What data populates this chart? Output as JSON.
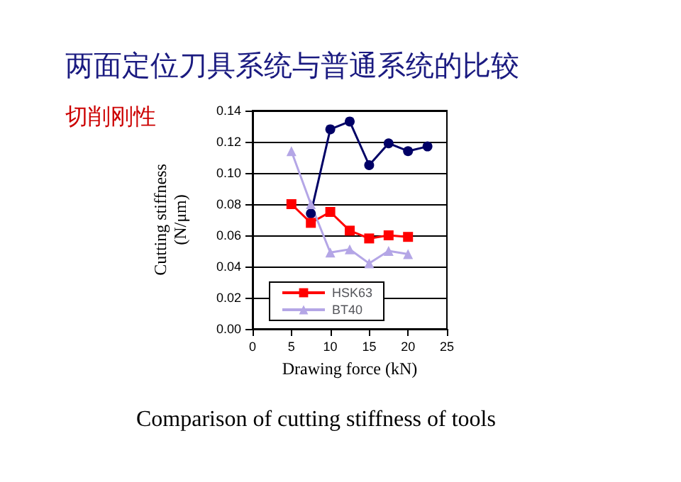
{
  "chart_data": {
    "type": "line",
    "title": "两面定位刀具系统与普通系统的比较",
    "subtitle": "切削刚性",
    "xlabel": "Drawing force (kN)",
    "ylabel": "Cutting stiffness\n(N/μm)",
    "annotations": [
      "Comparison of cutting stiffness of tools"
    ],
    "series": [
      {
        "color": "#000066",
        "marker": "circle",
        "x": [
          7.5,
          10,
          12.5,
          15,
          17.5,
          20,
          22.5
        ],
        "values": [
          0.074,
          0.128,
          0.133,
          0.105,
          0.119,
          0.114,
          0.117
        ]
      },
      {
        "name": "HSK63",
        "color": "#ff0000",
        "marker": "square",
        "x": [
          5,
          7.5,
          10,
          12.5,
          15,
          17.5,
          20
        ],
        "values": [
          0.08,
          0.068,
          0.075,
          0.063,
          0.058,
          0.06,
          0.059
        ]
      },
      {
        "name": "BT40",
        "color": "#b4a6e6",
        "marker": "triangle",
        "x": [
          5,
          7.5,
          10,
          12.5,
          15,
          17.5,
          20
        ],
        "values": [
          0.114,
          0.08,
          0.049,
          0.051,
          0.042,
          0.05,
          0.048
        ]
      }
    ],
    "xlim": [
      0,
      25
    ],
    "xticks": [
      0,
      5,
      10,
      15,
      20,
      25
    ],
    "ylim": [
      0,
      0.14
    ],
    "yticks": [
      {
        "value": 0,
        "label": "0.00"
      },
      0.02,
      0.04,
      0.06,
      0.08,
      {
        "value": 0.1,
        "label": "0.10"
      },
      0.12,
      0.14
    ],
    "grid": "y",
    "legend": "bottom left"
  }
}
